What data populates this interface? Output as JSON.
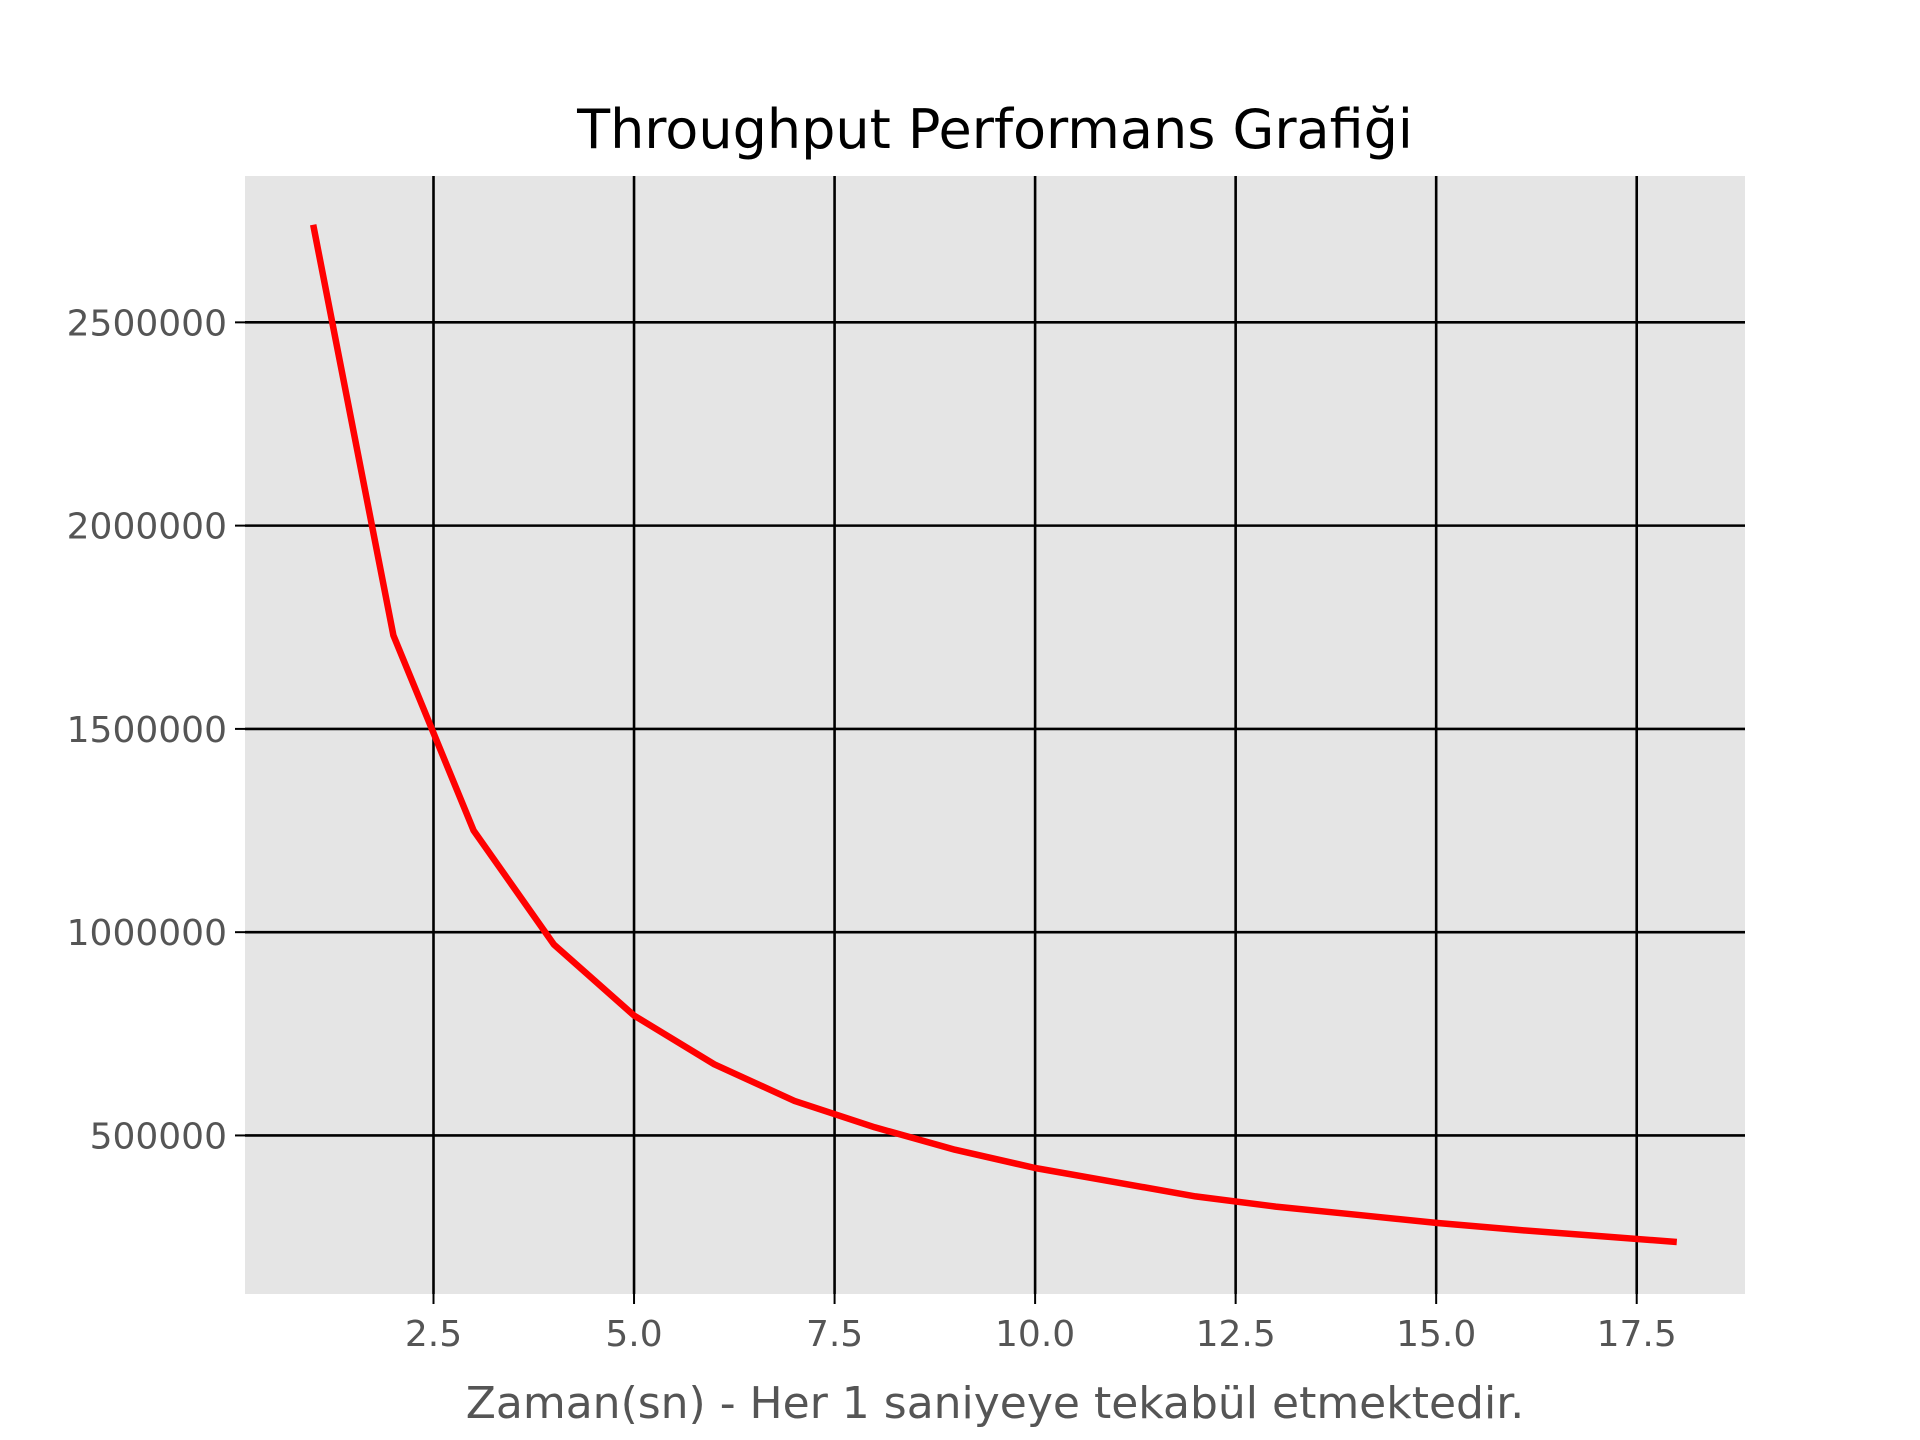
{
  "chart_data": {
    "type": "line",
    "title": "Throughput Performans Grafiği",
    "xlabel": "Zaman(sn) - Her 1 saniyeye tekabül etmektedir.",
    "ylabel": "",
    "xlim": [
      0.15,
      18.85
    ],
    "ylim": [
      110000,
      2860000
    ],
    "x_ticks": [
      2.5,
      5.0,
      7.5,
      10.0,
      12.5,
      15.0,
      17.5
    ],
    "x_tick_labels": [
      "2.5",
      "5.0",
      "7.5",
      "10.0",
      "12.5",
      "15.0",
      "17.5"
    ],
    "y_ticks": [
      500000,
      1000000,
      1500000,
      2000000,
      2500000
    ],
    "y_tick_labels": [
      "500000",
      "1000000",
      "1500000",
      "2000000",
      "2500000"
    ],
    "grid": true,
    "colors": {
      "line": "#ff0000",
      "plot_bg": "#e5e5e5",
      "grid": "#000000",
      "tick_text": "#555555"
    },
    "series": [
      {
        "x": [
          1,
          2,
          3,
          4,
          5,
          6,
          7,
          8,
          9,
          10,
          11,
          12,
          13,
          14,
          15,
          16,
          17,
          18
        ],
        "values": [
          2740000,
          1730000,
          1250000,
          970000,
          795000,
          675000,
          585000,
          520000,
          465000,
          420000,
          385000,
          350000,
          325000,
          305000,
          285000,
          268000,
          253000,
          238000
        ]
      }
    ]
  }
}
